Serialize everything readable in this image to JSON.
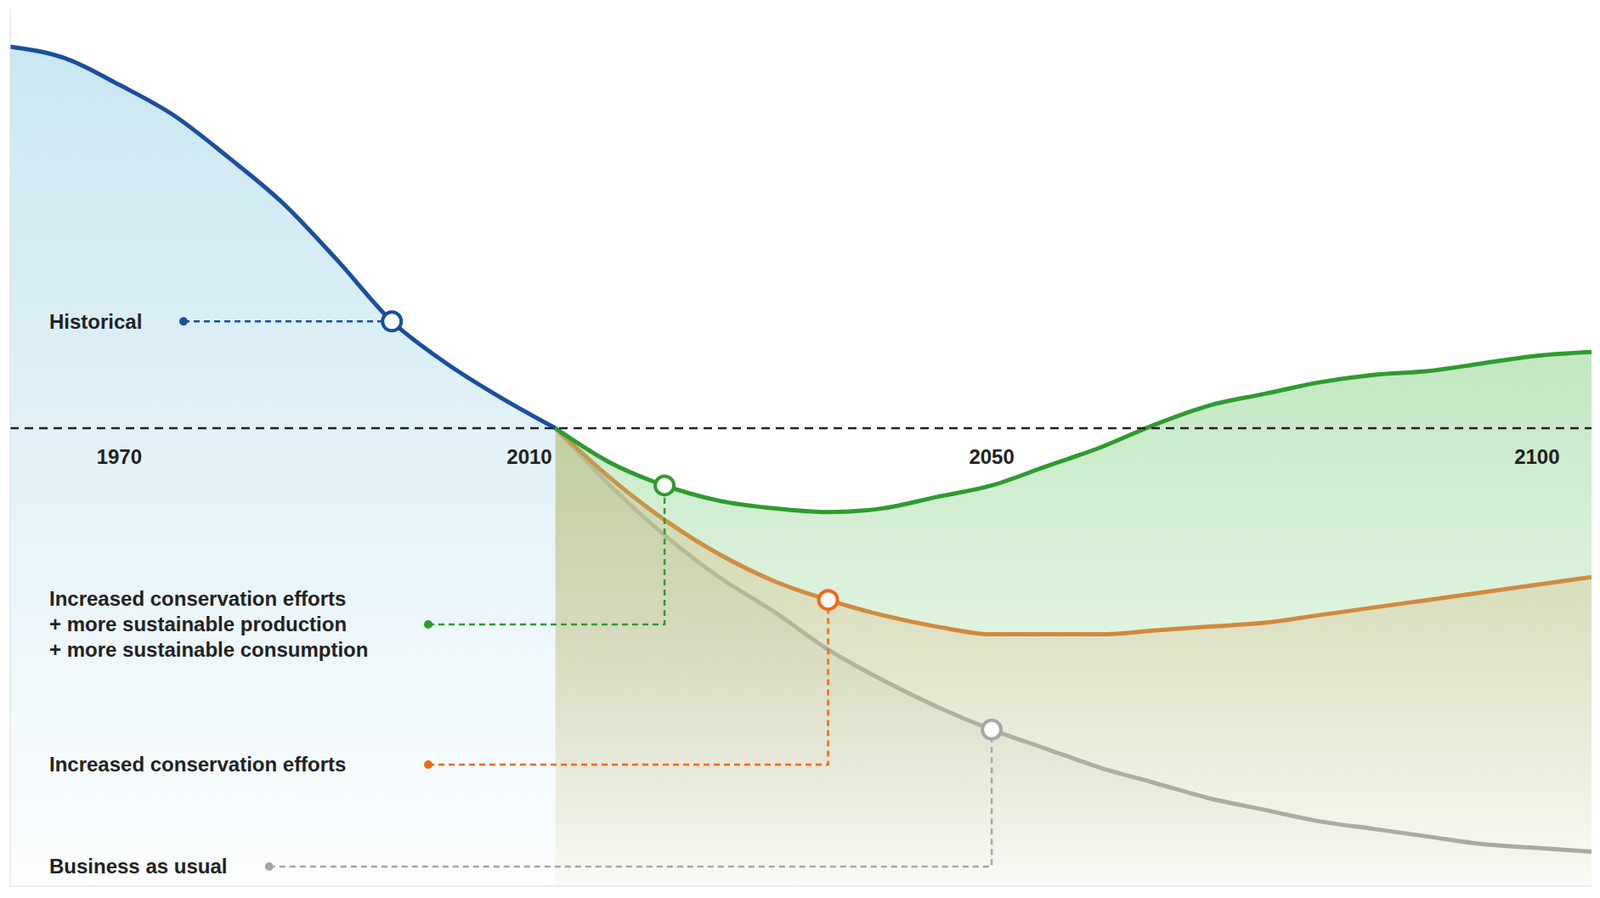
{
  "chart_data": {
    "type": "area",
    "x": [
      1960,
      1965,
      1970,
      1975,
      1980,
      1985,
      1990,
      1995,
      2000,
      2005,
      2010,
      2015,
      2020,
      2025,
      2030,
      2035,
      2040,
      2045,
      2050,
      2055,
      2060,
      2065,
      2070,
      2075,
      2080,
      2085,
      2090,
      2095,
      2100,
      2105
    ],
    "xlim": [
      1960,
      2105
    ],
    "xticks": [
      1970,
      2010,
      2050,
      2100
    ],
    "ylim": [
      -120,
      110
    ],
    "tick_labels": "x",
    "grid": false,
    "baseline": 0,
    "series": [
      {
        "name": "Historical",
        "color": "#1a4f9f",
        "values": [
          100,
          97,
          90,
          82,
          71,
          59,
          44,
          28,
          17,
          8,
          0,
          null,
          null,
          null,
          null,
          null,
          null,
          null,
          null,
          null,
          null,
          null,
          null,
          null,
          null,
          null,
          null,
          null,
          null,
          null
        ]
      },
      {
        "name": "Increased conservation efforts + more sustainable production + more sustainable consumption",
        "color": "#2e9b2e",
        "values": [
          null,
          null,
          null,
          null,
          null,
          null,
          null,
          null,
          null,
          null,
          0,
          -9,
          -15,
          -19,
          -21,
          -22,
          -21,
          -18,
          -15,
          -10,
          -5,
          1,
          6,
          9,
          12,
          14,
          15,
          17,
          19,
          20
        ]
      },
      {
        "name": "Increased conservation efforts",
        "color": "#ee6a1b",
        "values": [
          null,
          null,
          null,
          null,
          null,
          null,
          null,
          null,
          null,
          null,
          0,
          -13,
          -24,
          -33,
          -40,
          -45,
          -49,
          -52,
          -54,
          -54,
          -54,
          -53,
          -52,
          -51,
          -49,
          -47,
          -45,
          -43,
          -41,
          -39
        ]
      },
      {
        "name": "Business as usual",
        "color": "#a6a6a6",
        "values": [
          null,
          null,
          null,
          null,
          null,
          null,
          null,
          null,
          null,
          null,
          0,
          -15,
          -28,
          -39,
          -48,
          -58,
          -66,
          -73,
          -79,
          -84,
          -89,
          -93,
          -97,
          -100,
          -103,
          -105,
          -107,
          -109,
          -110,
          -111
        ]
      }
    ]
  }
}
